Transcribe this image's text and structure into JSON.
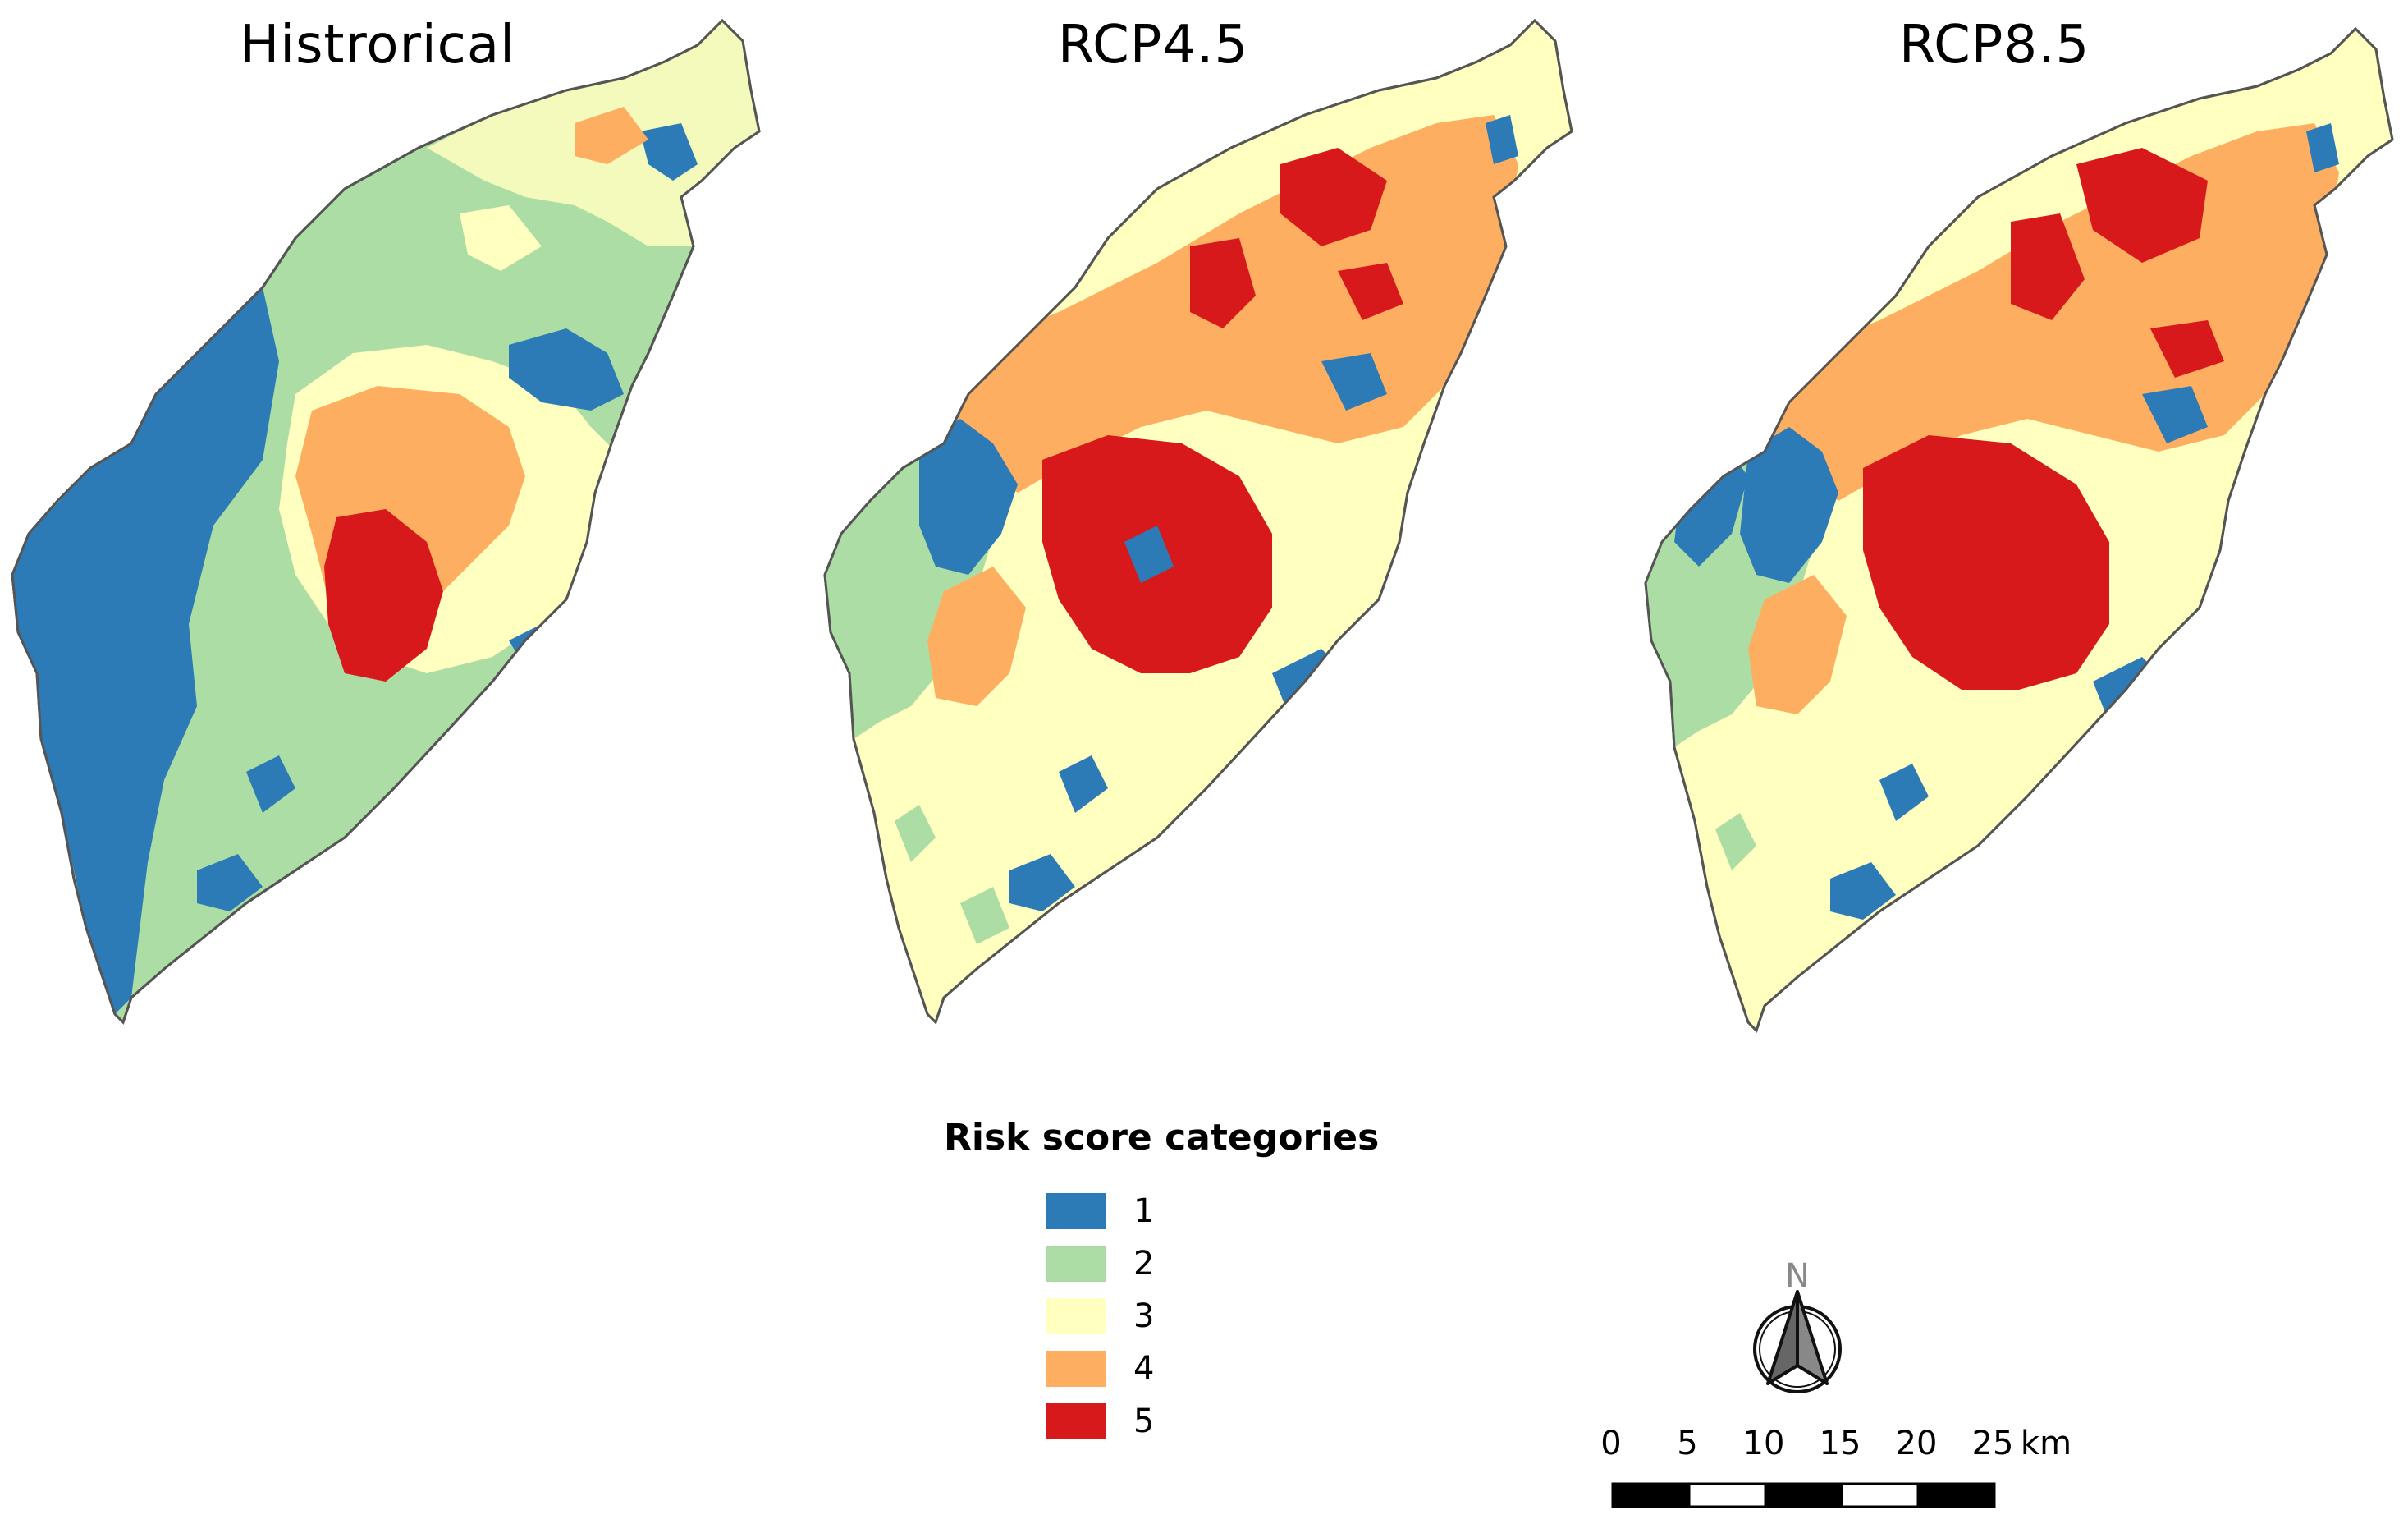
{
  "maps": [
    {
      "title": "Histrorical"
    },
    {
      "title": "RCP4.5"
    },
    {
      "title": "RCP8.5"
    }
  ],
  "legend": {
    "title": "Risk score categories",
    "items": [
      {
        "label": "1",
        "color": "#2c7bb6"
      },
      {
        "label": "2",
        "color": "#abdda4"
      },
      {
        "label": "3",
        "color": "#ffffbf"
      },
      {
        "label": "4",
        "color": "#fdae61"
      },
      {
        "label": "5",
        "color": "#d7191c"
      }
    ]
  },
  "north_arrow": {
    "label": "N"
  },
  "scale_bar": {
    "ticks": [
      "0",
      "5",
      "10",
      "15",
      "20",
      "25"
    ],
    "unit": "km"
  }
}
